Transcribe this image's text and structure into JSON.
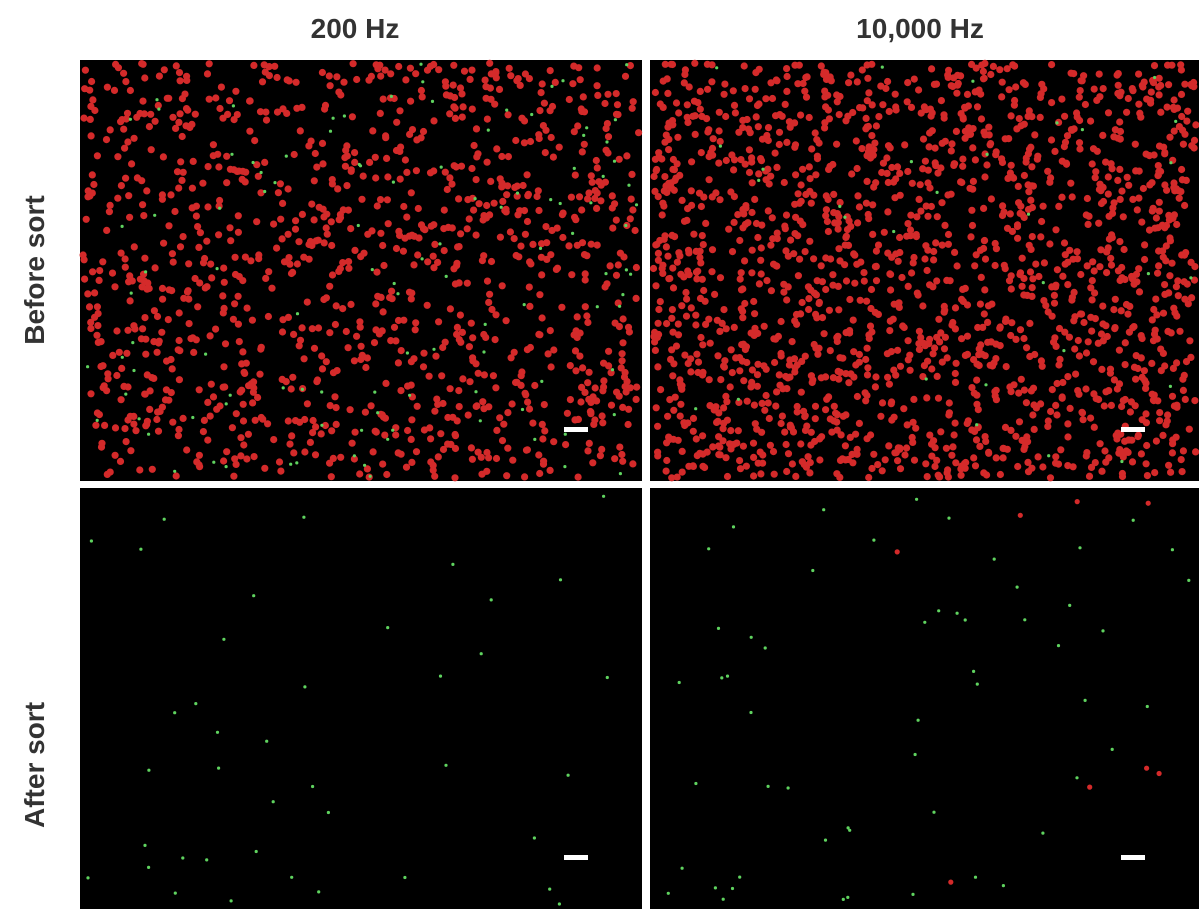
{
  "columns": [
    "200 Hz",
    "10,000 Hz"
  ],
  "rows": [
    "Before sort",
    "After sort"
  ]
}
